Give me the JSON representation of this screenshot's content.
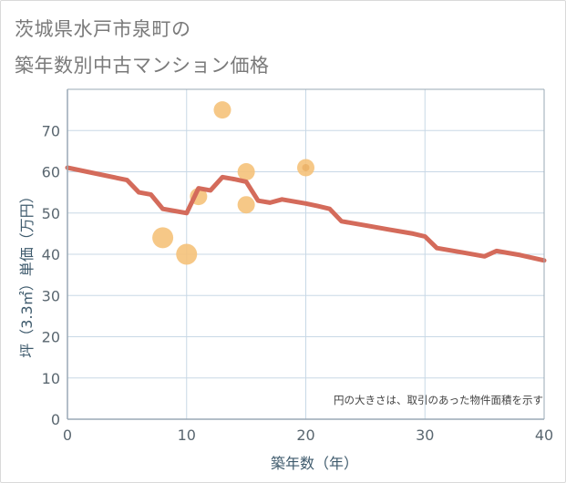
{
  "title": {
    "line1": "茨城県水戸市泉町の",
    "line2": "築年数別中古マンション価格"
  },
  "chart_data": {
    "type": "scatter",
    "title": "茨城県水戸市泉町の築年数別中古マンション価格",
    "xlabel": "築年数（年）",
    "ylabel": "坪（3.3㎡）単価（万円）",
    "xlim": [
      0,
      40
    ],
    "ylim": [
      0,
      80
    ],
    "xticks": [
      0,
      10,
      20,
      30,
      40
    ],
    "yticks": [
      0,
      10,
      20,
      30,
      40,
      50,
      60,
      70
    ],
    "grid": true,
    "note": "円の大きさは、取引のあった物件面積を示す",
    "colors": {
      "points": "#f5c27a",
      "trend": "#d46b5b",
      "axis": "#9aa9b5",
      "grid": "#c8d8e6"
    },
    "points": [
      {
        "x": 8,
        "y": 44,
        "size": 3
      },
      {
        "x": 10,
        "y": 40,
        "size": 3
      },
      {
        "x": 11,
        "y": 54,
        "size": 2
      },
      {
        "x": 13,
        "y": 75,
        "size": 2
      },
      {
        "x": 15,
        "y": 60,
        "size": 2
      },
      {
        "x": 15,
        "y": 52,
        "size": 2
      },
      {
        "x": 20,
        "y": 61,
        "size": 2
      },
      {
        "x": 20,
        "y": 61,
        "size": 0.5
      }
    ],
    "series": [
      {
        "name": "trend",
        "x": [
          0,
          5,
          6,
          7,
          8,
          9,
          10,
          11,
          12,
          13,
          14,
          15,
          16,
          17,
          18,
          19,
          20,
          21,
          22,
          23,
          25,
          27,
          29,
          30,
          31,
          33,
          35,
          36,
          38,
          40
        ],
        "y": [
          61,
          58,
          55,
          54.5,
          51,
          50.5,
          50,
          56,
          55.5,
          58.7,
          58.2,
          57.6,
          53,
          52.5,
          53.3,
          52.8,
          52.3,
          51.7,
          51,
          48,
          47,
          46,
          45,
          44.3,
          41.5,
          40.5,
          39.5,
          40.8,
          39.8,
          38.5
        ]
      }
    ]
  }
}
